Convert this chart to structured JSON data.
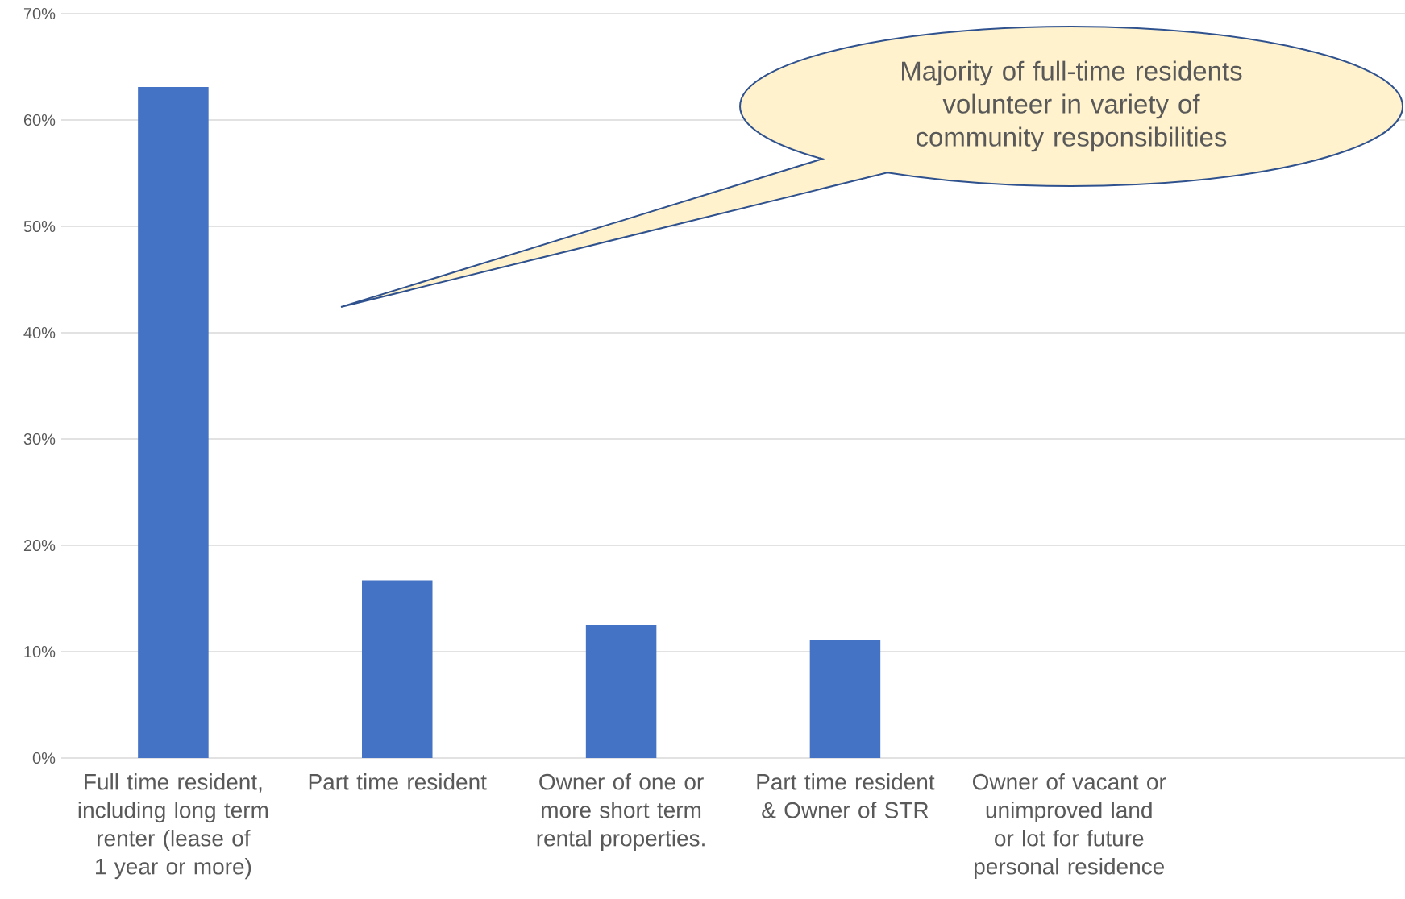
{
  "chart_data": {
    "type": "bar",
    "categories": [
      "Full time resident, including long term renter (lease of 1 year or more)",
      "Part time resident",
      "Owner of one or more short term rental properties.",
      "Part time resident & Owner of STR",
      "Owner of vacant or unimproved land or lot for future personal residence",
      null
    ],
    "values": [
      63.1,
      16.7,
      12.5,
      11.1,
      0,
      0
    ],
    "color": "#4472c4",
    "ylim": [
      0,
      70
    ],
    "yticks": [
      {
        "value": 0,
        "label": "0%"
      },
      {
        "value": 10,
        "label": "10%"
      },
      {
        "value": 20,
        "label": "20%"
      },
      {
        "value": 30,
        "label": "30%"
      },
      {
        "value": 40,
        "label": "40%"
      },
      {
        "value": 50,
        "label": "50%"
      },
      {
        "value": 60,
        "label": "60%"
      },
      {
        "value": 70,
        "label": "70%"
      }
    ],
    "grid": "y",
    "annotations": [
      "Majority of full-time residents volunteer in variety of community responsibilities"
    ]
  }
}
